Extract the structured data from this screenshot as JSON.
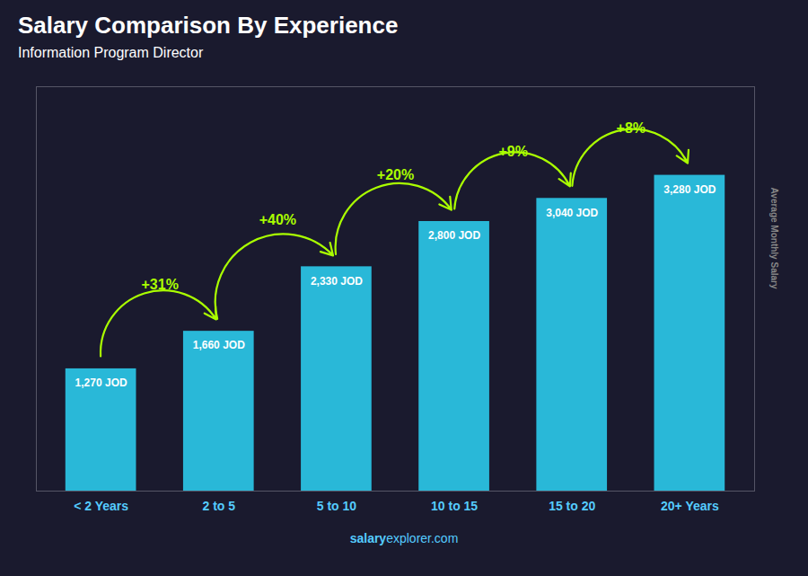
{
  "chart_data": {
    "type": "bar",
    "title": "Salary Comparison By Experience",
    "subtitle": "Information Program Director",
    "categories": [
      "< 2 Years",
      "2 to 5",
      "5 to 10",
      "10 to 15",
      "15 to 20",
      "20+ Years"
    ],
    "values": [
      1270,
      1660,
      2330,
      2800,
      3040,
      3280
    ],
    "value_labels": [
      "1,270 JOD",
      "1,660 JOD",
      "2,330 JOD",
      "2,800 JOD",
      "3,040 JOD",
      "3,280 JOD"
    ],
    "data_labels": true,
    "annotations": [
      null,
      "+31%",
      "+40%",
      "+20%",
      "+9%",
      "+8%"
    ],
    "ylabel": "Average Monthly Salary",
    "caption": [
      "salary",
      "explorer.com"
    ],
    "color": "#29b8d8",
    "ylim": [
      0,
      4200
    ],
    "grid": false,
    "tick_labels": "x"
  }
}
